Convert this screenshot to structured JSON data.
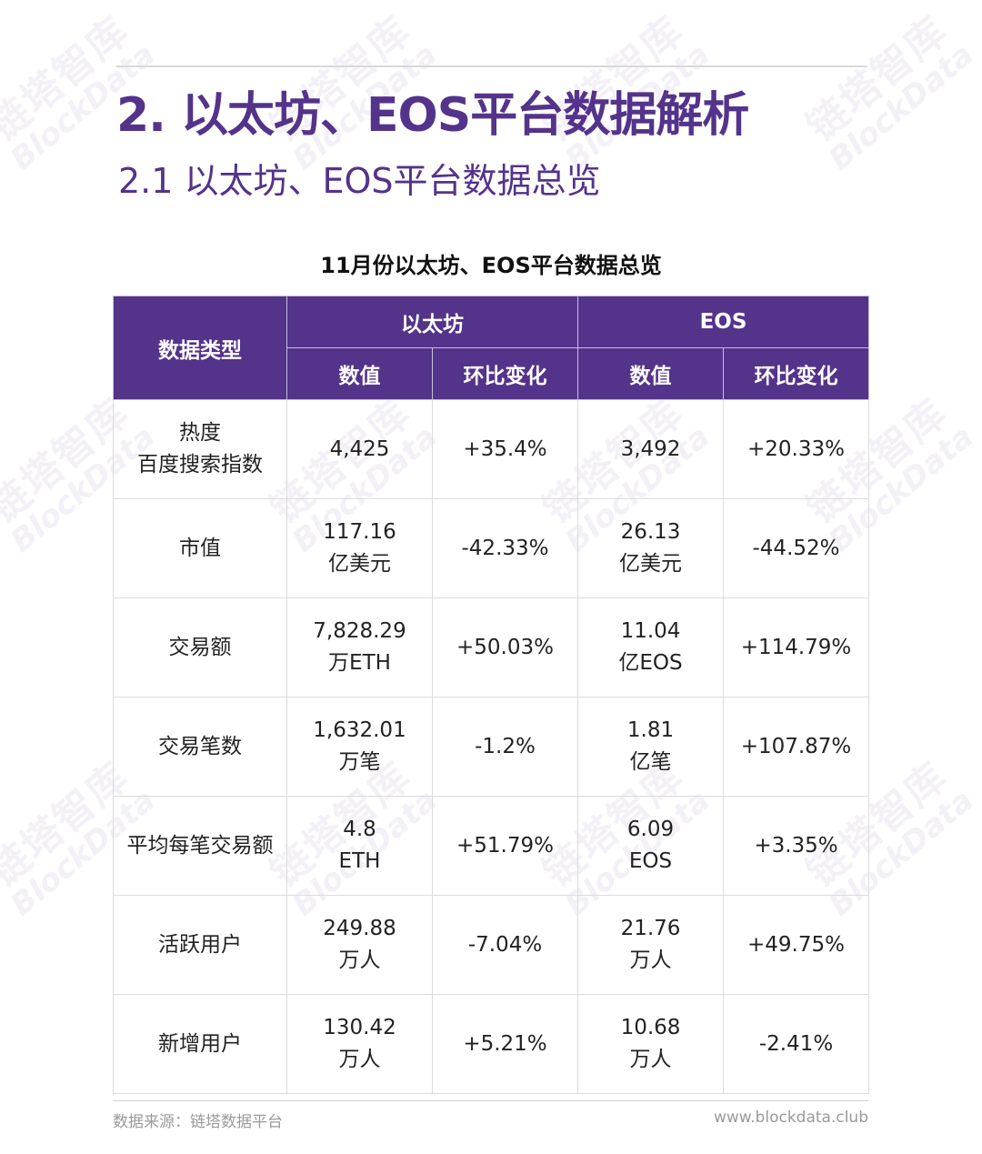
{
  "watermark": {
    "cn": "链塔智库",
    "en": "BlockData"
  },
  "heading": "2. 以太坊、EOS平台数据解析",
  "subheading": "2.1 以太坊、EOS平台数据总览",
  "table_title": "11月份以太坊、EOS平台数据总览",
  "table": {
    "header": {
      "type": "数据类型",
      "eth": "以太坊",
      "eos": "EOS",
      "value": "数值",
      "change": "环比变化"
    },
    "rows": [
      {
        "type": [
          "热度",
          "百度搜索指数"
        ],
        "eth_value": [
          "4,425"
        ],
        "eth_change": "+35.4%",
        "eos_value": [
          "3,492"
        ],
        "eos_change": "+20.33%"
      },
      {
        "type": [
          "市值"
        ],
        "eth_value": [
          "117.16",
          "亿美元"
        ],
        "eth_change": "-42.33%",
        "eos_value": [
          "26.13",
          "亿美元"
        ],
        "eos_change": "-44.52%"
      },
      {
        "type": [
          "交易额"
        ],
        "eth_value": [
          "7,828.29",
          "万ETH"
        ],
        "eth_change": "+50.03%",
        "eos_value": [
          "11.04",
          "亿EOS"
        ],
        "eos_change": "+114.79%"
      },
      {
        "type": [
          "交易笔数"
        ],
        "eth_value": [
          "1,632.01",
          "万笔"
        ],
        "eth_change": "-1.2%",
        "eos_value": [
          "1.81",
          "亿笔"
        ],
        "eos_change": "+107.87%"
      },
      {
        "type": [
          "平均每笔交易额"
        ],
        "eth_value": [
          "4.8",
          "ETH"
        ],
        "eth_change": "+51.79%",
        "eos_value": [
          "6.09",
          "EOS"
        ],
        "eos_change": "+3.35%"
      },
      {
        "type": [
          "活跃用户"
        ],
        "eth_value": [
          "249.88",
          "万人"
        ],
        "eth_change": "-7.04%",
        "eos_value": [
          "21.76",
          "万人"
        ],
        "eos_change": "+49.75%"
      },
      {
        "type": [
          "新增用户"
        ],
        "eth_value": [
          "130.42",
          "万人"
        ],
        "eth_change": "+5.21%",
        "eos_value": [
          "10.68",
          "万人"
        ],
        "eos_change": "-2.41%"
      }
    ]
  },
  "footer": {
    "source": "数据来源：链塔数据平台",
    "website": "www.blockdata.club"
  },
  "colors": {
    "accent": "#54338b",
    "rule": "#d9d9d9",
    "muted": "#9a9a9a"
  }
}
